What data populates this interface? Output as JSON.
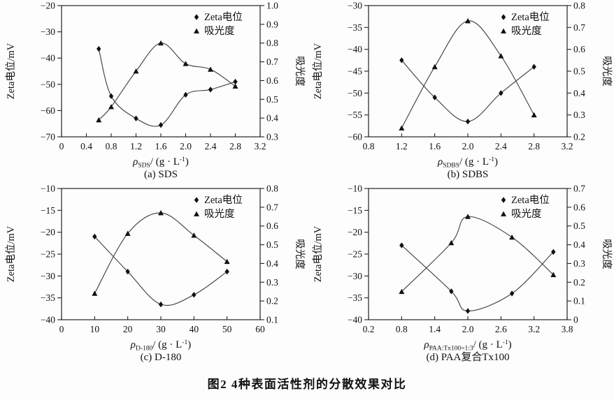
{
  "figure": {
    "caption": "图2  4种表面活性剂的分散效果对比"
  },
  "colors": {
    "line": "#4a4a4a",
    "marker": "#111111",
    "axis": "#222222",
    "background": "#fdfdfd"
  },
  "chart_data": [
    {
      "type": "line",
      "panel": "a",
      "subtitle": "(a) SDS",
      "xlabel": {
        "symbol": "ρ",
        "sub": "SDS",
        "mid": "/ (g · L",
        "sup": "-1",
        "end": ")"
      },
      "ylabel_left": "Zeta电位/mV",
      "ylabel_right": "吸光度",
      "xlim": [
        0,
        3.2
      ],
      "xticks": [
        0,
        0.4,
        0.8,
        1.2,
        1.6,
        2.0,
        2.4,
        2.8,
        3.2
      ],
      "xtick_labels": [
        "0",
        "0.4",
        "0.8",
        "1.2",
        "1.6",
        "2.0",
        "2.4",
        "2.8",
        "3.2"
      ],
      "ylim_left": [
        -70,
        -20
      ],
      "yticks_left": [
        -70,
        -60,
        -50,
        -40,
        -30,
        -20
      ],
      "ytick_left_labels": [
        "−70",
        "−60",
        "−50",
        "−40",
        "−30",
        "−20"
      ],
      "ylim_right": [
        0.3,
        1.0
      ],
      "yticks_right": [
        0.3,
        0.4,
        0.5,
        0.6,
        0.7,
        0.8,
        0.9,
        1.0
      ],
      "ytick_right_labels": [
        "0.3",
        "0.4",
        "0.5",
        "0.6",
        "0.7",
        "0.8",
        "0.9",
        "1.0"
      ],
      "legend": [
        {
          "label": "Zeta电位",
          "marker": "diamond"
        },
        {
          "label": "吸光度",
          "marker": "triangle"
        }
      ],
      "series": [
        {
          "name": "Zeta电位",
          "axis": "left",
          "marker": "diamond",
          "x": [
            0.6,
            0.8,
            1.2,
            1.6,
            2.0,
            2.4,
            2.8
          ],
          "y": [
            -36.5,
            -54.5,
            -63,
            -65.5,
            -54,
            -52,
            -49
          ]
        },
        {
          "name": "吸光度",
          "axis": "right",
          "marker": "triangle",
          "x": [
            0.6,
            0.8,
            1.2,
            1.6,
            2.0,
            2.4,
            2.8
          ],
          "y": [
            0.39,
            0.46,
            0.65,
            0.8,
            0.69,
            0.66,
            0.57
          ]
        }
      ]
    },
    {
      "type": "line",
      "panel": "b",
      "subtitle": "(b) SDBS",
      "xlabel": {
        "symbol": "ρ",
        "sub": "SDBS",
        "mid": "/ (g · L",
        "sup": "-1",
        "end": ")"
      },
      "ylabel_left": "Zeta电位/mV",
      "ylabel_right": "吸光度",
      "xlim": [
        0.8,
        3.2
      ],
      "xticks": [
        0.8,
        1.2,
        1.6,
        2.0,
        2.4,
        2.8,
        3.2
      ],
      "xtick_labels": [
        "0.8",
        "1.2",
        "1.6",
        "2.0",
        "2.4",
        "2.8",
        "3.2"
      ],
      "ylim_left": [
        -60,
        -30
      ],
      "yticks_left": [
        -60,
        -55,
        -50,
        -45,
        -40,
        -35,
        -30
      ],
      "ytick_left_labels": [
        "−60",
        "−55",
        "−50",
        "−45",
        "−40",
        "−35",
        "−30"
      ],
      "ylim_right": [
        0.2,
        0.8
      ],
      "yticks_right": [
        0.2,
        0.3,
        0.4,
        0.5,
        0.6,
        0.7,
        0.8
      ],
      "ytick_right_labels": [
        "0.2",
        "0.3",
        "0.4",
        "0.5",
        "0.6",
        "0.7",
        "0.8"
      ],
      "legend": [
        {
          "label": "Zeta电位",
          "marker": "diamond"
        },
        {
          "label": "吸光度",
          "marker": "triangle"
        }
      ],
      "series": [
        {
          "name": "Zeta电位",
          "axis": "left",
          "marker": "diamond",
          "x": [
            1.2,
            1.6,
            2.0,
            2.4,
            2.8
          ],
          "y": [
            -42.5,
            -51,
            -56.5,
            -50,
            -44
          ]
        },
        {
          "name": "吸光度",
          "axis": "right",
          "marker": "triangle",
          "x": [
            1.2,
            1.6,
            2.0,
            2.4,
            2.8
          ],
          "y": [
            0.24,
            0.52,
            0.73,
            0.57,
            0.3
          ]
        }
      ]
    },
    {
      "type": "line",
      "panel": "c",
      "subtitle": "(c) D-180",
      "xlabel": {
        "symbol": "ρ",
        "sub": "D-180",
        "mid": "/ (g · L",
        "sup": "-1",
        "end": ")"
      },
      "ylabel_left": "Zeta电位/mV",
      "ylabel_right": "吸光度",
      "xlim": [
        0,
        60
      ],
      "xticks": [
        0,
        10,
        20,
        30,
        40,
        50,
        60
      ],
      "xtick_labels": [
        "0",
        "10",
        "20",
        "30",
        "40",
        "50",
        "60"
      ],
      "ylim_left": [
        -40,
        -10
      ],
      "yticks_left": [
        -40,
        -35,
        -30,
        -25,
        -20,
        -15,
        -10
      ],
      "ytick_left_labels": [
        "−40",
        "−35",
        "−30",
        "−25",
        "−20",
        "−15",
        "−10"
      ],
      "ylim_right": [
        0.1,
        0.8
      ],
      "yticks_right": [
        0.1,
        0.2,
        0.3,
        0.4,
        0.5,
        0.6,
        0.7,
        0.8
      ],
      "ytick_right_labels": [
        "0.1",
        "0.2",
        "0.3",
        "0.4",
        "0.5",
        "0.6",
        "0.7",
        "0.8"
      ],
      "legend": [
        {
          "label": "Zeta电位",
          "marker": "diamond"
        },
        {
          "label": "吸光度",
          "marker": "triangle"
        }
      ],
      "series": [
        {
          "name": "Zeta电位",
          "axis": "left",
          "marker": "diamond",
          "x": [
            10,
            20,
            30,
            40,
            50
          ],
          "y": [
            -21,
            -29,
            -36.5,
            -34.3,
            -29
          ]
        },
        {
          "name": "吸光度",
          "axis": "right",
          "marker": "triangle",
          "x": [
            10,
            20,
            30,
            40,
            50
          ],
          "y": [
            0.24,
            0.56,
            0.67,
            0.55,
            0.41
          ]
        }
      ]
    },
    {
      "type": "line",
      "panel": "d",
      "subtitle": "(d) PAA复合Tx100",
      "xlabel": {
        "symbol": "ρ",
        "sub": "PAA:Tx100=1:3",
        "mid": "/ (g · L",
        "sup": "-1",
        "end": ")"
      },
      "ylabel_left": "Zeta电位/mV",
      "ylabel_right": "吸光度",
      "xlim": [
        0.2,
        3.8
      ],
      "xticks": [
        0.2,
        0.8,
        1.4,
        2.0,
        2.6,
        3.2,
        3.8
      ],
      "xtick_labels": [
        "0.2",
        "0.8",
        "1.4",
        "2.0",
        "2.6",
        "3.2",
        "3.8"
      ],
      "ylim_left": [
        -40,
        -10
      ],
      "yticks_left": [
        -40,
        -35,
        -30,
        -25,
        -20,
        -15,
        -10
      ],
      "ytick_left_labels": [
        "−40",
        "−35",
        "−30",
        "−25",
        "−20",
        "−15",
        "−10"
      ],
      "ylim_right": [
        0,
        0.7
      ],
      "yticks_right": [
        0,
        0.1,
        0.2,
        0.3,
        0.4,
        0.5,
        0.6,
        0.7
      ],
      "ytick_right_labels": [
        "0",
        "0.1",
        "0.2",
        "0.3",
        "0.4",
        "0.5",
        "0.6",
        "0.7"
      ],
      "legend": [
        {
          "label": "Zeta电位",
          "marker": "diamond"
        },
        {
          "label": "吸光度",
          "marker": "triangle"
        }
      ],
      "series": [
        {
          "name": "Zeta电位",
          "axis": "left",
          "marker": "diamond",
          "x": [
            0.8,
            1.7,
            2.0,
            2.8,
            3.55
          ],
          "y": [
            -23,
            -33.5,
            -38,
            -34,
            -24.5
          ]
        },
        {
          "name": "吸光度",
          "axis": "right",
          "marker": "triangle",
          "x": [
            0.8,
            1.7,
            2.0,
            2.8,
            3.55
          ],
          "y": [
            0.15,
            0.41,
            0.55,
            0.44,
            0.24
          ]
        }
      ]
    }
  ]
}
